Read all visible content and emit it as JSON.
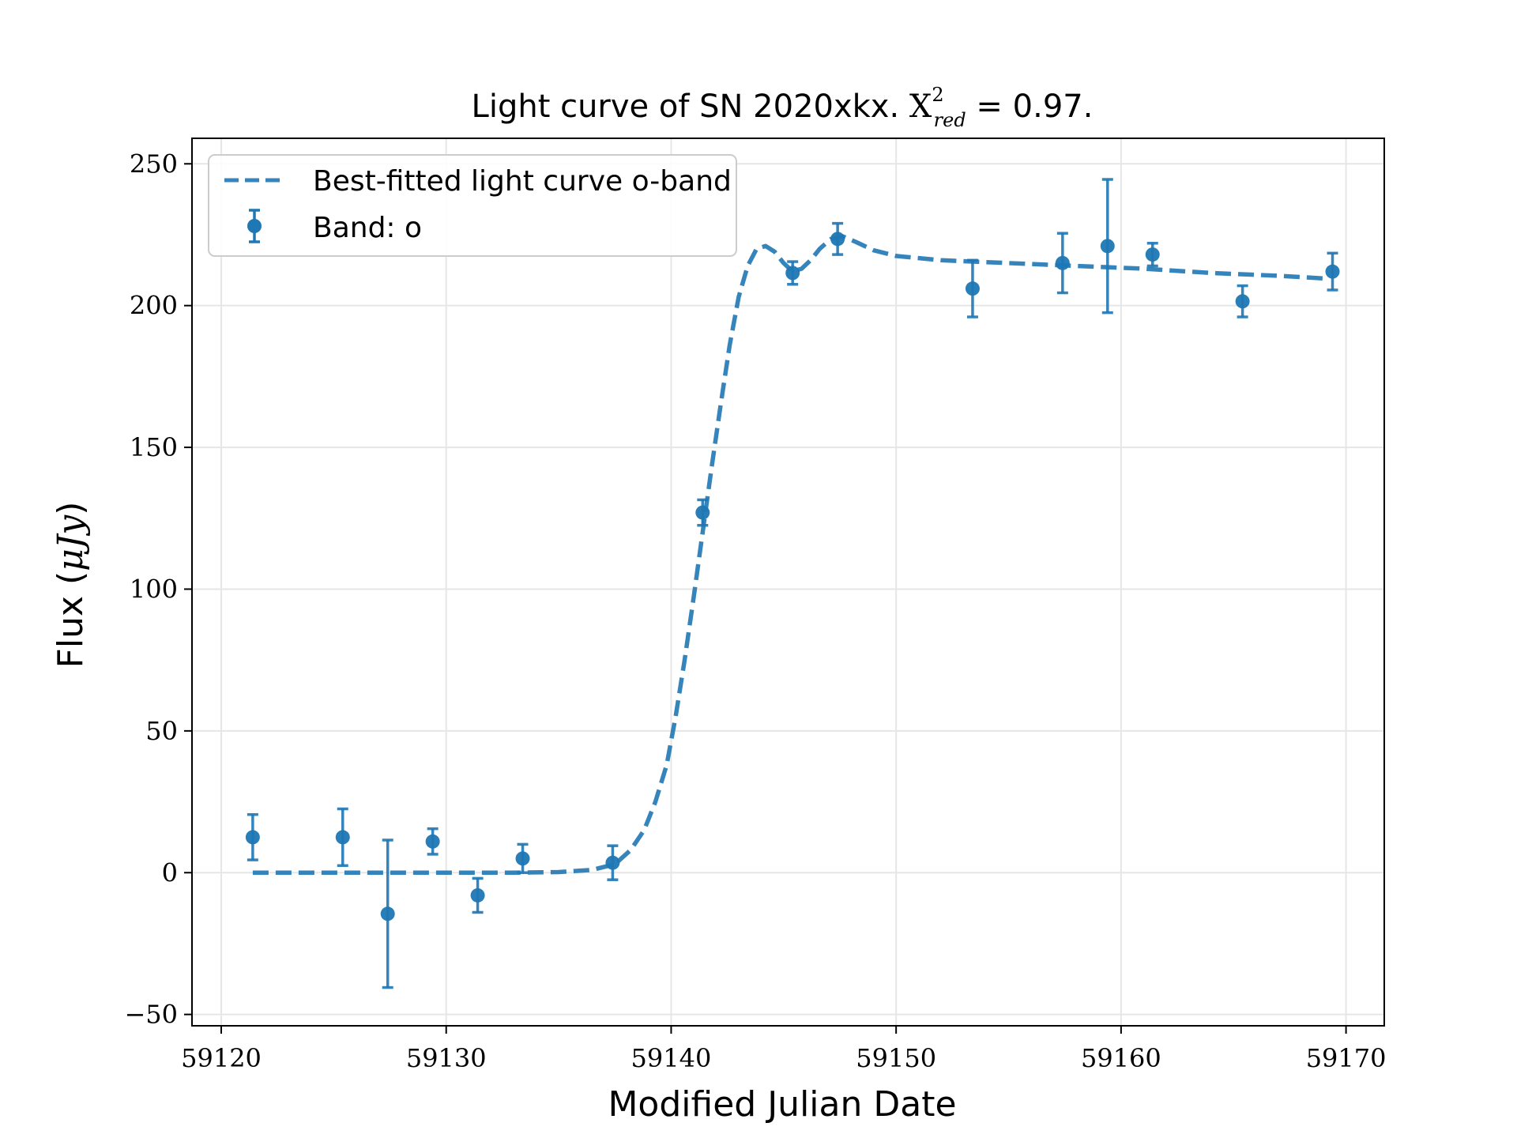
{
  "chart_data": {
    "type": "scatter",
    "title": {
      "prefix": "Light curve of SN 2020xkx. ",
      "chi_symbol": "X",
      "chi_superscript": "2",
      "chi_subscript": "red",
      "suffix": " = 0.97."
    },
    "xlabel": "Modified Julian Date",
    "ylabel": {
      "prefix": "Flux (",
      "unit": "μJy",
      "suffix": ")"
    },
    "xlim": [
      59118.7,
      59171.7
    ],
    "ylim": [
      -54,
      259
    ],
    "xticks": [
      59120,
      59130,
      59140,
      59150,
      59160,
      59170
    ],
    "yticks": [
      -50,
      0,
      50,
      100,
      150,
      200,
      250
    ],
    "ytick_labels": [
      "−50",
      "0",
      "50",
      "100",
      "150",
      "200",
      "250"
    ],
    "grid": true,
    "legend_position": "top-left",
    "color": "#1f77b4",
    "series": [
      {
        "name": "Best-fitted light curve o-band",
        "kind": "line",
        "style": "dashed",
        "x": [
          59121.4,
          59124,
          59127,
          59130,
          59133,
          59135,
          59136.5,
          59137.5,
          59138.2,
          59138.8,
          59139.3,
          59139.8,
          59140.2,
          59140.6,
          59141,
          59141.4,
          59141.8,
          59142.2,
          59142.6,
          59143,
          59143.4,
          59143.8,
          59144.2,
          59144.6,
          59145,
          59145.4,
          59145.8,
          59146.2,
          59146.6,
          59147.1,
          59147.6,
          59148.2,
          59149,
          59150,
          59152,
          59155,
          59158,
          59161,
          59164,
          59167,
          59169.2
        ],
        "y": [
          0,
          0,
          0,
          0,
          0,
          0.2,
          1,
          3,
          8,
          15,
          25,
          38,
          55,
          75,
          97,
          120,
          143,
          165,
          186,
          203,
          214,
          220,
          221,
          219,
          215,
          212,
          213,
          216,
          220,
          223.5,
          224.5,
          222.5,
          219.5,
          217.5,
          216,
          215,
          214,
          213,
          211.5,
          210.5,
          209.5
        ]
      },
      {
        "name": "Band: o",
        "kind": "errorbar",
        "x": [
          59121.4,
          59125.4,
          59127.4,
          59129.4,
          59131.4,
          59133.4,
          59137.4,
          59141.4,
          59145.4,
          59147.4,
          59153.4,
          59157.4,
          59159.4,
          59161.4,
          59165.4,
          59169.4
        ],
        "y": [
          12.5,
          12.5,
          -14.5,
          11,
          -8,
          5,
          3.5,
          127,
          211.5,
          223.5,
          206,
          215,
          221,
          218,
          201.5,
          212
        ],
        "yerr": [
          8,
          10,
          26,
          4.5,
          6,
          5,
          6,
          4.5,
          4,
          5.5,
          10,
          10.5,
          23.5,
          4,
          5.5,
          6.5
        ]
      }
    ]
  }
}
